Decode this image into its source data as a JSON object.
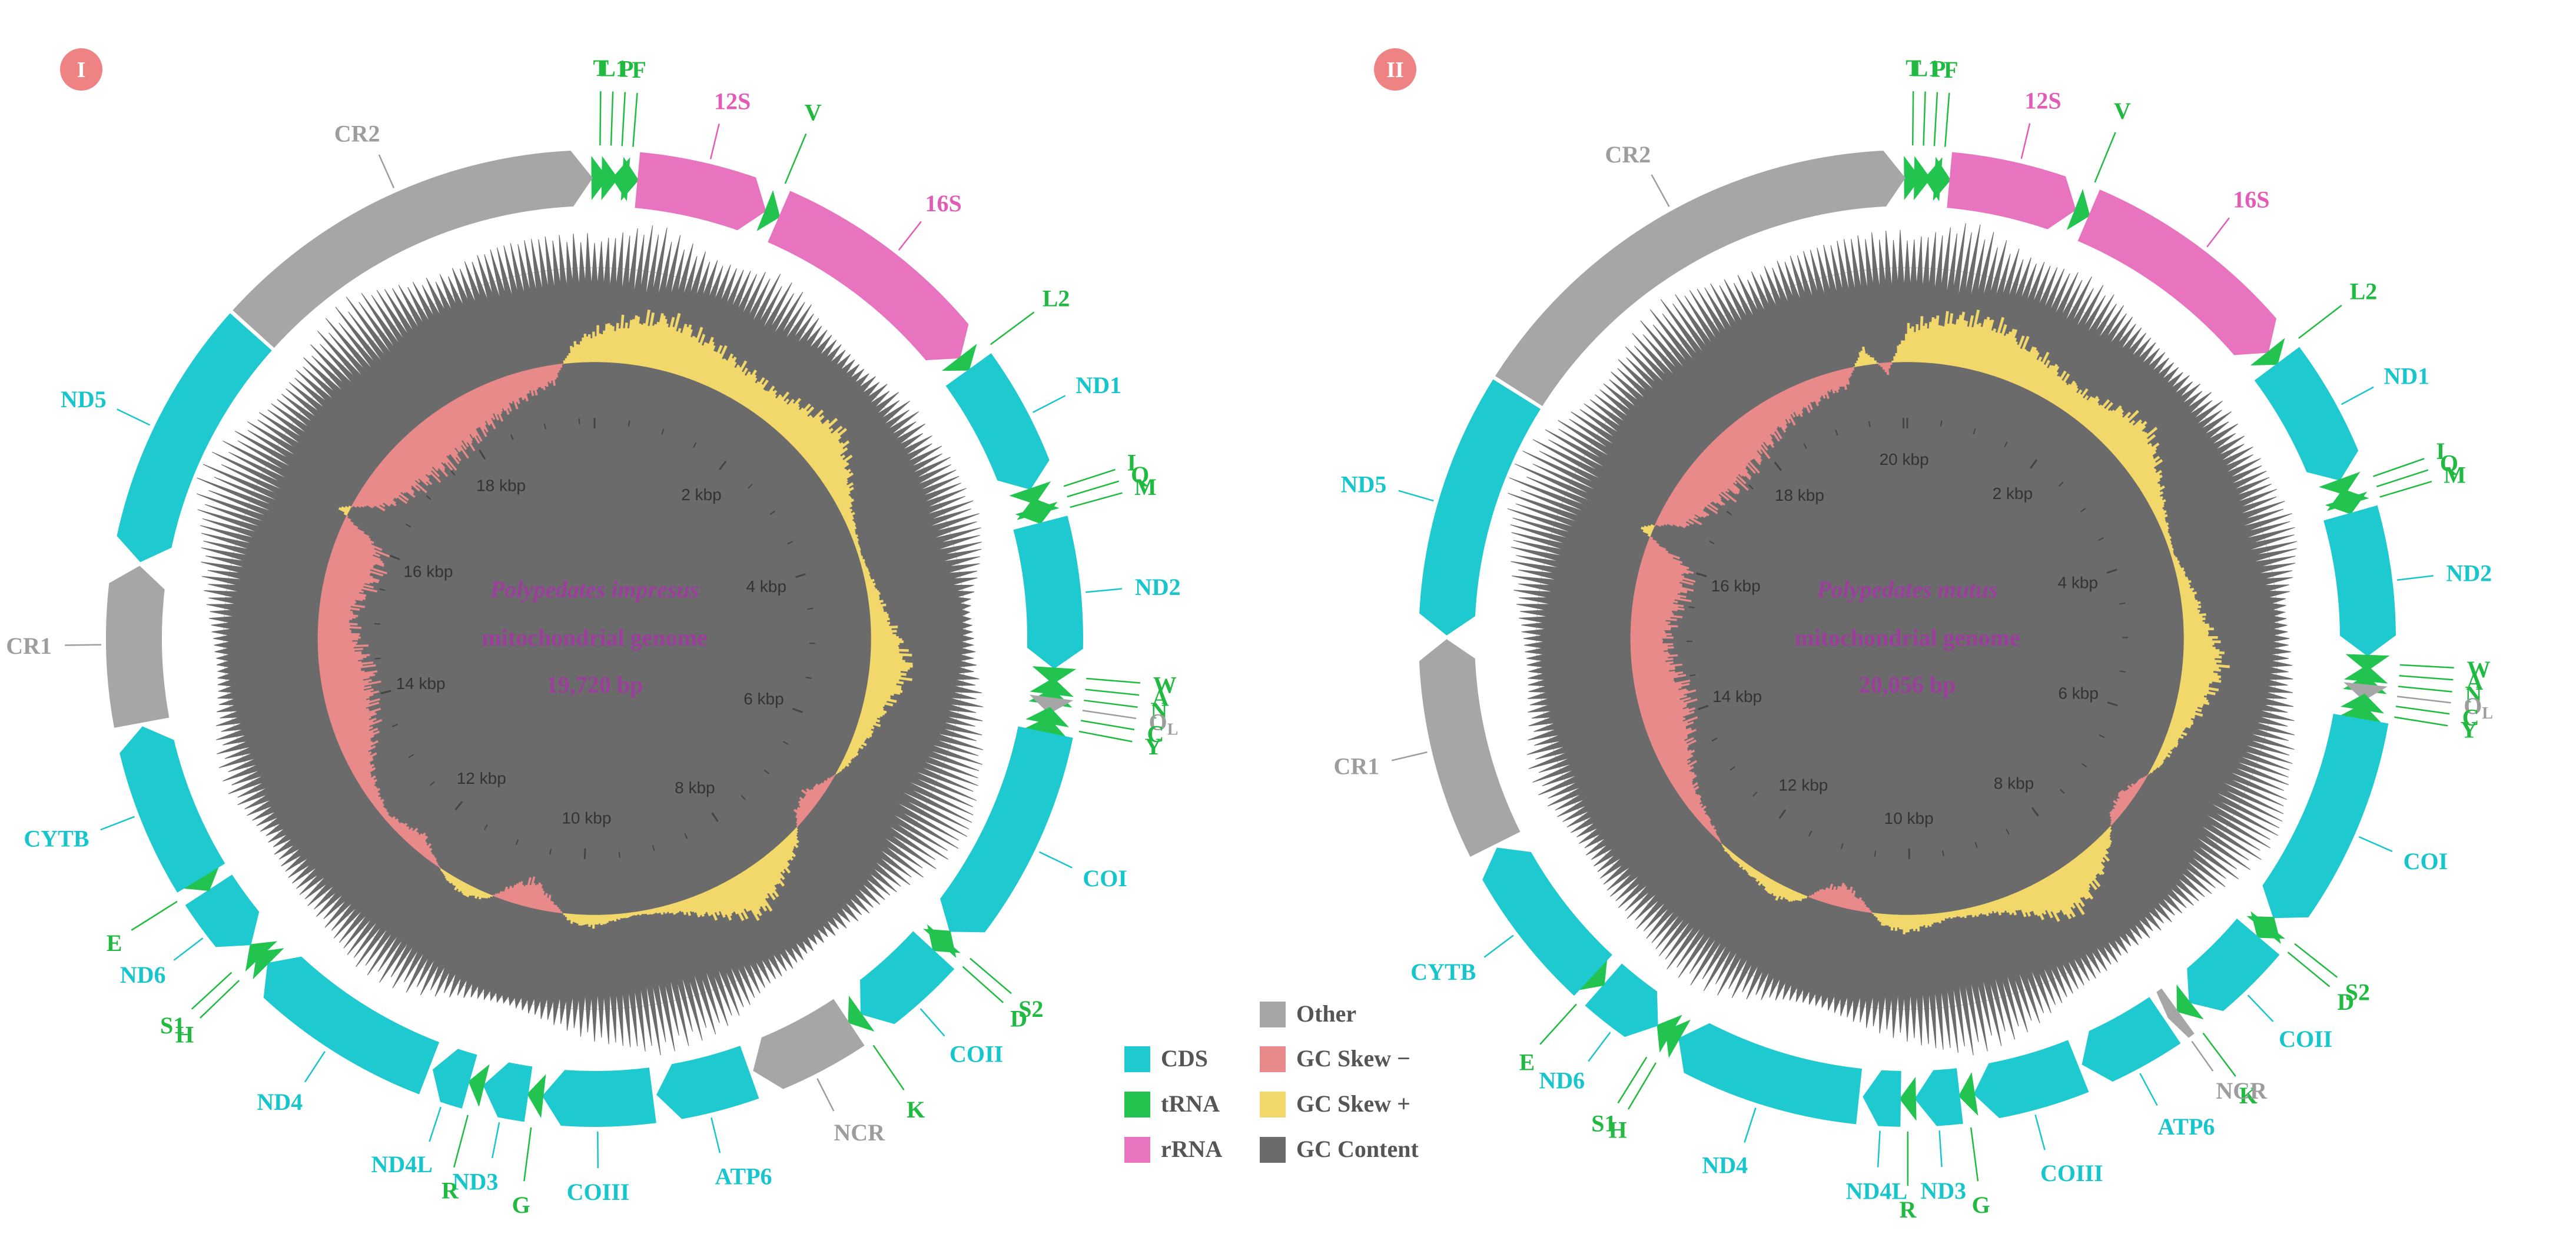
{
  "colors": {
    "cds": "#1ec9cf",
    "trna": "#22c44f",
    "rrna": "#e874c0",
    "other": "#a6a6a6",
    "gc_skew_neg": "#e98a8a",
    "gc_skew_pos": "#f2d86a",
    "gc_content": "#6b6b6b",
    "badge": "#ef8282",
    "title": "#9b3e9c",
    "label_cds": "#17c5cc",
    "label_trna": "#1fba3f",
    "label_rrna": "#e35bb5",
    "label_other": "#9d9d9d"
  },
  "legend": {
    "items": [
      {
        "key": "cds",
        "label": "CDS"
      },
      {
        "key": "trna",
        "label": "tRNA"
      },
      {
        "key": "rrna",
        "label": "rRNA"
      },
      {
        "key": "other",
        "label": "Other"
      },
      {
        "key": "gc_skew_neg",
        "label": "GC Skew −"
      },
      {
        "key": "gc_skew_pos",
        "label": "GC Skew +"
      },
      {
        "key": "gc_content",
        "label": "GC Content"
      }
    ]
  },
  "maps": [
    {
      "badge": "I",
      "species": "Polypedates impresus",
      "subtitle": "mitochondrial genome",
      "length_label": "19,720 bp",
      "length": 19720,
      "kbp_labels": [
        "2 kbp",
        "4 kbp",
        "6 kbp",
        "8 kbp",
        "10 kbp",
        "12 kbp",
        "14 kbp",
        "16 kbp",
        "18 kbp"
      ],
      "features": [
        {
          "name": "T",
          "type": "trna",
          "start": 0,
          "end": 70,
          "strand": "+"
        },
        {
          "name": "L1",
          "type": "trna",
          "start": 70,
          "end": 140,
          "strand": "+"
        },
        {
          "name": "P",
          "type": "trna",
          "start": 140,
          "end": 210,
          "strand": "-"
        },
        {
          "name": "F",
          "type": "trna",
          "start": 210,
          "end": 280,
          "strand": "+"
        },
        {
          "name": "12S",
          "type": "rrna",
          "start": 280,
          "end": 1210,
          "strand": "+"
        },
        {
          "name": "V",
          "type": "trna",
          "start": 1210,
          "end": 1280,
          "strand": "+"
        },
        {
          "name": "16S",
          "type": "rrna",
          "start": 1280,
          "end": 2890,
          "strand": "+"
        },
        {
          "name": "L2",
          "type": "trna",
          "start": 2890,
          "end": 2960,
          "strand": "+"
        },
        {
          "name": "ND1",
          "type": "cds",
          "start": 2960,
          "end": 3910,
          "strand": "+"
        },
        {
          "name": "I",
          "type": "trna",
          "start": 3910,
          "end": 3980,
          "strand": "+"
        },
        {
          "name": "Q",
          "type": "trna",
          "start": 3980,
          "end": 4050,
          "strand": "-"
        },
        {
          "name": "M",
          "type": "trna",
          "start": 4050,
          "end": 4120,
          "strand": "+"
        },
        {
          "name": "ND2",
          "type": "cds",
          "start": 4120,
          "end": 5150,
          "strand": "+"
        },
        {
          "name": "W",
          "type": "trna",
          "start": 5150,
          "end": 5220,
          "strand": "+"
        },
        {
          "name": "A",
          "type": "trna",
          "start": 5220,
          "end": 5290,
          "strand": "-"
        },
        {
          "name": "N",
          "type": "trna",
          "start": 5290,
          "end": 5360,
          "strand": "-"
        },
        {
          "name": "OL",
          "type": "other",
          "start": 5360,
          "end": 5420,
          "strand": "+"
        },
        {
          "name": "C",
          "type": "trna",
          "start": 5420,
          "end": 5490,
          "strand": "-"
        },
        {
          "name": "Y",
          "type": "trna",
          "start": 5490,
          "end": 5560,
          "strand": "-"
        },
        {
          "name": "COI",
          "type": "cds",
          "start": 5560,
          "end": 7110,
          "strand": "+"
        },
        {
          "name": "S2",
          "type": "trna",
          "start": 7110,
          "end": 7180,
          "strand": "-"
        },
        {
          "name": "D",
          "type": "trna",
          "start": 7180,
          "end": 7250,
          "strand": "+"
        },
        {
          "name": "COII",
          "type": "cds",
          "start": 7250,
          "end": 7940,
          "strand": "+"
        },
        {
          "name": "K",
          "type": "trna",
          "start": 7940,
          "end": 8010,
          "strand": "+"
        },
        {
          "name": "NCR",
          "type": "other",
          "start": 8010,
          "end": 8770,
          "strand": "+"
        },
        {
          "name": "ATP6",
          "type": "cds",
          "start": 8770,
          "end": 9450,
          "strand": "+"
        },
        {
          "name": "COIII",
          "type": "cds",
          "start": 9450,
          "end": 10230,
          "strand": "+"
        },
        {
          "name": "G",
          "type": "trna",
          "start": 10230,
          "end": 10300,
          "strand": "+"
        },
        {
          "name": "ND3",
          "type": "cds",
          "start": 10300,
          "end": 10640,
          "strand": "+"
        },
        {
          "name": "R",
          "type": "trna",
          "start": 10640,
          "end": 10710,
          "strand": "+"
        },
        {
          "name": "ND4L",
          "type": "cds",
          "start": 10710,
          "end": 11000,
          "strand": "+"
        },
        {
          "name": "ND4",
          "type": "cds",
          "start": 11000,
          "end": 12350,
          "strand": "+"
        },
        {
          "name": "H",
          "type": "trna",
          "start": 12350,
          "end": 12420,
          "strand": "+"
        },
        {
          "name": "S1",
          "type": "trna",
          "start": 12420,
          "end": 12490,
          "strand": "+"
        },
        {
          "name": "ND6",
          "type": "cds",
          "start": 12490,
          "end": 12990,
          "strand": "-"
        },
        {
          "name": "E",
          "type": "trna",
          "start": 12990,
          "end": 13060,
          "strand": "-"
        },
        {
          "name": "CYTB",
          "type": "cds",
          "start": 13060,
          "end": 14200,
          "strand": "+"
        },
        {
          "name": "CR1",
          "type": "other",
          "start": 14200,
          "end": 15300,
          "strand": "+"
        },
        {
          "name": "ND5",
          "type": "cds",
          "start": 15300,
          "end": 17090,
          "strand": "-"
        },
        {
          "name": "CR2",
          "type": "other",
          "start": 17090,
          "end": 19720,
          "strand": "+"
        }
      ],
      "gc_content": [
        0.55,
        0.7,
        0.8,
        0.6,
        0.45,
        0.5,
        0.65,
        0.55,
        0.3,
        0.25,
        0.2,
        0.3,
        0.4,
        0.35,
        0.5,
        0.55,
        0.6,
        0.5,
        0.3,
        0.1,
        0.15,
        0.2,
        0.35,
        0.45,
        0.7,
        0.85,
        0.95,
        0.8,
        0.6,
        0.4,
        0.3,
        0.2,
        0.15,
        0.25,
        0.35,
        0.55,
        0.7,
        0.75,
        0.85,
        0.7,
        0.55,
        0.35,
        0.2,
        0.1,
        0.15,
        0.3,
        0.45,
        0.55,
        0.6,
        0.5,
        0.4,
        0.35,
        0.3,
        0.25,
        0.35,
        0.45,
        0.4,
        0.3,
        0.2,
        0.15,
        0.2,
        0.3,
        0.45,
        0.6,
        0.8,
        0.95,
        0.85,
        0.7,
        0.6,
        0.55,
        0.6,
        0.75,
        0.85,
        0.7,
        0.5,
        0.4,
        0.5,
        0.65,
        0.7,
        0.6
      ],
      "gc_skew": [
        0.55,
        0.7,
        0.85,
        0.9,
        0.8,
        0.7,
        0.6,
        0.55,
        0.5,
        0.6,
        0.7,
        0.8,
        0.6,
        0.4,
        0.2,
        0.1,
        0.05,
        0.1,
        0.2,
        0.3,
        0.5,
        0.7,
        0.6,
        0.4,
        0.3,
        0.2,
        0.1,
        -0.1,
        -0.3,
        -0.2,
        0.2,
        0.4,
        0.6,
        0.8,
        0.6,
        0.4,
        0.2,
        0.1,
        0.05,
        0.1,
        0.2,
        0.15,
        -0.2,
        -0.5,
        -0.3,
        0.1,
        0.2,
        0.1,
        -0.1,
        -0.3,
        -0.2,
        -0.1,
        -0.2,
        -0.3,
        -0.5,
        -0.7,
        -0.8,
        -0.85,
        -0.9,
        -0.8,
        -0.7,
        -0.6,
        -0.7,
        -0.85,
        -0.9,
        -0.8,
        0.2,
        -0.5,
        -0.7,
        -0.8,
        -0.85,
        -0.9,
        -0.85,
        -0.8,
        -0.7,
        -0.6,
        -0.5,
        -0.4,
        -0.3,
        0.3
      ]
    },
    {
      "badge": "II",
      "species": "Polypedates mutus",
      "subtitle": "mitochondrial genome",
      "length_label": "20,056 bp",
      "length": 20056,
      "kbp_labels": [
        "2 kbp",
        "4 kbp",
        "6 kbp",
        "8 kbp",
        "10 kbp",
        "12 kbp",
        "14 kbp",
        "16 kbp",
        "18 kbp",
        "20 kbp"
      ],
      "features": [
        {
          "name": "T",
          "type": "trna",
          "start": 0,
          "end": 70,
          "strand": "+"
        },
        {
          "name": "L1",
          "type": "trna",
          "start": 70,
          "end": 140,
          "strand": "+"
        },
        {
          "name": "P",
          "type": "trna",
          "start": 140,
          "end": 210,
          "strand": "-"
        },
        {
          "name": "F",
          "type": "trna",
          "start": 210,
          "end": 280,
          "strand": "+"
        },
        {
          "name": "12S",
          "type": "rrna",
          "start": 280,
          "end": 1210,
          "strand": "+"
        },
        {
          "name": "V",
          "type": "trna",
          "start": 1210,
          "end": 1280,
          "strand": "+"
        },
        {
          "name": "16S",
          "type": "rrna",
          "start": 1280,
          "end": 2890,
          "strand": "+"
        },
        {
          "name": "L2",
          "type": "trna",
          "start": 2890,
          "end": 2960,
          "strand": "+"
        },
        {
          "name": "ND1",
          "type": "cds",
          "start": 2960,
          "end": 3910,
          "strand": "+"
        },
        {
          "name": "I",
          "type": "trna",
          "start": 3910,
          "end": 3980,
          "strand": "+"
        },
        {
          "name": "Q",
          "type": "trna",
          "start": 3980,
          "end": 4050,
          "strand": "-"
        },
        {
          "name": "M",
          "type": "trna",
          "start": 4050,
          "end": 4120,
          "strand": "+"
        },
        {
          "name": "ND2",
          "type": "cds",
          "start": 4120,
          "end": 5150,
          "strand": "+"
        },
        {
          "name": "W",
          "type": "trna",
          "start": 5150,
          "end": 5220,
          "strand": "+"
        },
        {
          "name": "A",
          "type": "trna",
          "start": 5220,
          "end": 5290,
          "strand": "-"
        },
        {
          "name": "N",
          "type": "trna",
          "start": 5290,
          "end": 5360,
          "strand": "-"
        },
        {
          "name": "OL",
          "type": "other",
          "start": 5360,
          "end": 5420,
          "strand": "+"
        },
        {
          "name": "C",
          "type": "trna",
          "start": 5420,
          "end": 5490,
          "strand": "-"
        },
        {
          "name": "Y",
          "type": "trna",
          "start": 5490,
          "end": 5560,
          "strand": "-"
        },
        {
          "name": "COI",
          "type": "cds",
          "start": 5560,
          "end": 7110,
          "strand": "+"
        },
        {
          "name": "S2",
          "type": "trna",
          "start": 7110,
          "end": 7180,
          "strand": "-"
        },
        {
          "name": "D",
          "type": "trna",
          "start": 7180,
          "end": 7250,
          "strand": "+"
        },
        {
          "name": "COII",
          "type": "cds",
          "start": 7250,
          "end": 7940,
          "strand": "+"
        },
        {
          "name": "K",
          "type": "trna",
          "start": 7940,
          "end": 8010,
          "strand": "+"
        },
        {
          "name": "NCR",
          "type": "other",
          "start": 8010,
          "end": 8120,
          "strand": "+"
        },
        {
          "name": "ATP6",
          "type": "cds",
          "start": 8120,
          "end": 8800,
          "strand": "+"
        },
        {
          "name": "COIII",
          "type": "cds",
          "start": 8800,
          "end": 9580,
          "strand": "+"
        },
        {
          "name": "G",
          "type": "trna",
          "start": 9580,
          "end": 9650,
          "strand": "+"
        },
        {
          "name": "ND3",
          "type": "cds",
          "start": 9650,
          "end": 9990,
          "strand": "+"
        },
        {
          "name": "R",
          "type": "trna",
          "start": 9990,
          "end": 10060,
          "strand": "+"
        },
        {
          "name": "ND4L",
          "type": "cds",
          "start": 10060,
          "end": 10350,
          "strand": "+"
        },
        {
          "name": "ND4",
          "type": "cds",
          "start": 10350,
          "end": 11700,
          "strand": "+"
        },
        {
          "name": "H",
          "type": "trna",
          "start": 11700,
          "end": 11770,
          "strand": "+"
        },
        {
          "name": "S1",
          "type": "trna",
          "start": 11770,
          "end": 11840,
          "strand": "+"
        },
        {
          "name": "ND6",
          "type": "cds",
          "start": 11840,
          "end": 12340,
          "strand": "-"
        },
        {
          "name": "E",
          "type": "trna",
          "start": 12340,
          "end": 12410,
          "strand": "-"
        },
        {
          "name": "CYTB",
          "type": "cds",
          "start": 12410,
          "end": 13550,
          "strand": "+"
        },
        {
          "name": "CR1",
          "type": "other",
          "start": 13550,
          "end": 15050,
          "strand": "+"
        },
        {
          "name": "ND5",
          "type": "cds",
          "start": 15050,
          "end": 16840,
          "strand": "-"
        },
        {
          "name": "CR2",
          "type": "other",
          "start": 16840,
          "end": 20056,
          "strand": "+"
        }
      ],
      "gc_content": [
        0.6,
        0.7,
        0.85,
        0.65,
        0.5,
        0.55,
        0.6,
        0.5,
        0.35,
        0.3,
        0.25,
        0.3,
        0.4,
        0.35,
        0.45,
        0.5,
        0.6,
        0.55,
        0.35,
        0.15,
        0.2,
        0.25,
        0.3,
        0.45,
        0.65,
        0.8,
        0.9,
        0.8,
        0.65,
        0.45,
        0.3,
        0.25,
        0.2,
        0.3,
        0.4,
        0.5,
        0.65,
        0.75,
        0.85,
        0.75,
        0.55,
        0.4,
        0.25,
        0.15,
        0.2,
        0.35,
        0.5,
        0.6,
        0.65,
        0.5,
        0.45,
        0.4,
        0.3,
        0.3,
        0.4,
        0.5,
        0.45,
        0.3,
        0.25,
        0.2,
        0.25,
        0.35,
        0.5,
        0.65,
        0.85,
        0.95,
        0.9,
        0.75,
        0.6,
        0.5,
        0.55,
        0.7,
        0.8,
        0.7,
        0.55,
        0.45,
        0.5,
        0.6,
        0.7,
        0.65
      ],
      "gc_skew": [
        0.6,
        0.75,
        0.85,
        0.9,
        0.85,
        0.7,
        0.6,
        0.5,
        0.45,
        0.55,
        0.7,
        0.75,
        0.55,
        0.35,
        0.2,
        0.1,
        0.05,
        0.15,
        0.25,
        0.35,
        0.55,
        0.7,
        0.6,
        0.45,
        0.3,
        0.2,
        0.1,
        -0.1,
        -0.25,
        -0.15,
        0.2,
        0.45,
        0.65,
        0.8,
        0.6,
        0.35,
        0.2,
        0.15,
        0.1,
        0.2,
        0.3,
        0.2,
        -0.15,
        -0.4,
        -0.25,
        0.15,
        0.25,
        0.15,
        0.1,
        0.05,
        -0.1,
        -0.2,
        -0.3,
        -0.45,
        -0.6,
        -0.75,
        -0.85,
        -0.9,
        -0.8,
        -0.7,
        -0.65,
        -0.75,
        -0.85,
        -0.9,
        -0.8,
        0.25,
        -0.55,
        -0.7,
        -0.8,
        -0.9,
        -0.85,
        -0.8,
        -0.7,
        -0.6,
        -0.5,
        -0.45,
        -0.35,
        -0.3,
        0.3,
        -0.2
      ]
    }
  ]
}
